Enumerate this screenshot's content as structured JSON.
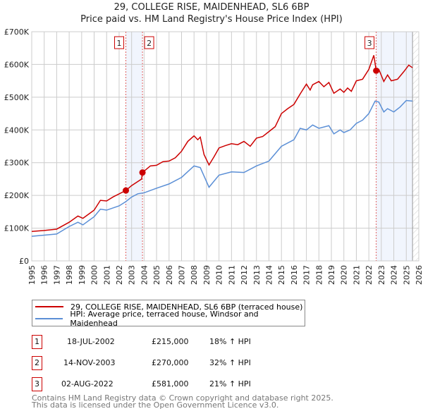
{
  "chart_data": {
    "type": "line",
    "title": "29, COLLEGE RISE, MAIDENHEAD, SL6 6BP",
    "subtitle": "Price paid vs. HM Land Registry's House Price Index (HPI)",
    "xlim": [
      1995,
      2026
    ],
    "ylim": [
      0,
      700000
    ],
    "x_ticks": [
      "1995",
      "1996",
      "1997",
      "1998",
      "1999",
      "2000",
      "2001",
      "2002",
      "2003",
      "2004",
      "2005",
      "2006",
      "2007",
      "2008",
      "2009",
      "2010",
      "2011",
      "2012",
      "2013",
      "2014",
      "2015",
      "2016",
      "2017",
      "2018",
      "2019",
      "2020",
      "2021",
      "2022",
      "2023",
      "2024",
      "2025",
      "2026"
    ],
    "y_ticks": [
      {
        "v": 0,
        "label": "£0"
      },
      {
        "v": 100000,
        "label": "£100K"
      },
      {
        "v": 200000,
        "label": "£200K"
      },
      {
        "v": 300000,
        "label": "£300K"
      },
      {
        "v": 400000,
        "label": "£400K"
      },
      {
        "v": 500000,
        "label": "£500K"
      },
      {
        "v": 600000,
        "label": "£600K"
      },
      {
        "v": 700000,
        "label": "£700K"
      }
    ],
    "grid": true,
    "series": [
      {
        "name": "29, COLLEGE RISE, MAIDENHEAD, SL6 6BP (terraced house)",
        "color": "#cc0000",
        "x": [
          1995,
          1996,
          1997,
          1998,
          1998.7,
          1999.1,
          2000,
          2000.5,
          2001,
          2001.5,
          2002.54,
          2003,
          2003.8,
          2003.87,
          2004.5,
          2005,
          2005.5,
          2006,
          2006.5,
          2007,
          2007.5,
          2008,
          2008.3,
          2008.5,
          2008.8,
          2009.2,
          2009.6,
          2010,
          2010.5,
          2011,
          2011.5,
          2012,
          2012.5,
          2013,
          2013.5,
          2014,
          2014.5,
          2015,
          2015.5,
          2016,
          2016.5,
          2017,
          2017.3,
          2017.5,
          2018,
          2018.4,
          2018.8,
          2019.2,
          2019.7,
          2020,
          2020.3,
          2020.6,
          2021,
          2021.5,
          2022,
          2022.4,
          2022.59,
          2022.8,
          2023.2,
          2023.5,
          2023.8,
          2024.3,
          2024.8,
          2025.2,
          2025.5
        ],
        "y": [
          90000,
          93000,
          97000,
          118000,
          137000,
          130000,
          155000,
          185000,
          183000,
          195000,
          215000,
          230000,
          250000,
          270000,
          290000,
          292000,
          303000,
          305000,
          315000,
          335000,
          365000,
          382000,
          370000,
          378000,
          325000,
          293000,
          318000,
          345000,
          352000,
          358000,
          355000,
          365000,
          350000,
          375000,
          380000,
          395000,
          410000,
          450000,
          465000,
          478000,
          510000,
          540000,
          522000,
          538000,
          548000,
          532000,
          545000,
          512000,
          525000,
          515000,
          528000,
          518000,
          550000,
          555000,
          585000,
          628000,
          581000,
          585000,
          548000,
          568000,
          550000,
          555000,
          578000,
          598000,
          590000
        ]
      },
      {
        "name": "HPI: Average price, terraced house, Windsor and Maidenhead",
        "color": "#5b8fd6",
        "x": [
          1995,
          1997,
          1998,
          1998.7,
          1999.1,
          2000,
          2000.5,
          2001,
          2002,
          2002.5,
          2003,
          2003.5,
          2004,
          2005,
          2006,
          2007,
          2008,
          2008.5,
          2009.2,
          2010,
          2011,
          2012,
          2013,
          2014,
          2015,
          2016,
          2016.5,
          2017,
          2017.5,
          2018,
          2018.8,
          2019.2,
          2019.7,
          2020,
          2020.5,
          2021,
          2021.5,
          2022,
          2022.5,
          2022.8,
          2023.2,
          2023.5,
          2024,
          2024.5,
          2025,
          2025.5
        ],
        "y": [
          75000,
          82000,
          105000,
          118000,
          110000,
          135000,
          158000,
          155000,
          168000,
          180000,
          195000,
          205000,
          208000,
          222000,
          235000,
          255000,
          290000,
          285000,
          225000,
          262000,
          272000,
          270000,
          290000,
          305000,
          350000,
          370000,
          405000,
          400000,
          415000,
          405000,
          413000,
          388000,
          400000,
          392000,
          400000,
          420000,
          430000,
          450000,
          488000,
          485000,
          455000,
          465000,
          455000,
          470000,
          490000,
          488000
        ]
      }
    ],
    "sales": [
      {
        "label": "1",
        "x": 2002.54,
        "y": 215000,
        "date": "18-JUL-2002",
        "price": "£215,000",
        "hpi": "18% ↑ HPI"
      },
      {
        "label": "2",
        "x": 2003.87,
        "y": 270000,
        "date": "14-NOV-2003",
        "price": "£270,000",
        "hpi": "32% ↑ HPI"
      },
      {
        "label": "3",
        "x": 2022.59,
        "y": 581000,
        "date": "02-AUG-2022",
        "price": "£581,000",
        "hpi": "21% ↑ HPI"
      }
    ],
    "shaded_spans": [
      [
        2002.54,
        2003.87
      ],
      [
        2022.59,
        2025.5
      ]
    ],
    "forecast_start": 2025.5,
    "legend_position": "bottom"
  },
  "footer": {
    "line1": "Contains HM Land Registry data © Crown copyright and database right 2025.",
    "line2": "This data is licensed under the Open Government Licence v3.0."
  }
}
